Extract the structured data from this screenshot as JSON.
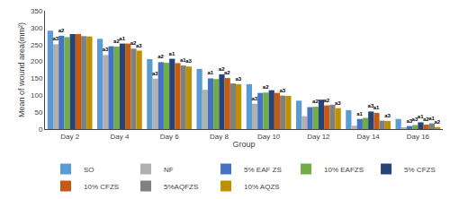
{
  "chart_data": {
    "type": "bar",
    "xlabel": "Group",
    "ylabel": "Mean of wound area(mm²)",
    "categories": [
      "Day 2",
      "Day 4",
      "Day 6",
      "Day 8",
      "Day 10",
      "Day 12",
      "Day 14",
      "Day 16"
    ],
    "series": [
      {
        "name": "SO",
        "color": "#5B9BD5",
        "values": [
          291,
          267,
          207,
          178,
          133,
          84,
          56,
          30
        ]
      },
      {
        "name": "NF",
        "color": "#B0B0B0",
        "values": [
          251,
          219,
          149,
          116,
          75,
          38,
          10,
          4
        ]
      },
      {
        "name": "5% EAF ZS",
        "color": "#4472C4",
        "values": [
          276,
          245,
          198,
          150,
          107,
          65,
          30,
          9
        ]
      },
      {
        "name": "10% EAFZS",
        "color": "#70AD47",
        "values": [
          272,
          244,
          196,
          148,
          108,
          66,
          33,
          12
        ]
      },
      {
        "name": "5% CFZS",
        "color": "#264478",
        "values": [
          281,
          253,
          208,
          162,
          115,
          87,
          52,
          20
        ]
      },
      {
        "name": "10% CFZS",
        "color": "#C55A11",
        "values": [
          281,
          253,
          195,
          151,
          107,
          70,
          48,
          13
        ]
      },
      {
        "name": "5%AQFZS",
        "color": "#808080",
        "values": [
          275,
          238,
          188,
          135,
          99,
          72,
          25,
          17
        ]
      },
      {
        "name": "10% AQZS",
        "color": "#BF9000",
        "values": [
          274,
          232,
          185,
          133,
          98,
          62,
          24,
          6
        ]
      }
    ],
    "annotations": [
      {
        "category": "Day 2",
        "series": "NF",
        "text": "a3"
      },
      {
        "category": "Day 2",
        "series": "5% EAF ZS",
        "text": "a2"
      },
      {
        "category": "Day 4",
        "series": "NF",
        "text": "a3"
      },
      {
        "category": "Day 4",
        "series": "10% EAFZS",
        "text": "a2"
      },
      {
        "category": "Day 4",
        "series": "5% CFZS",
        "text": "a1"
      },
      {
        "category": "Day 4",
        "series": "5%AQFZS",
        "text": "a2"
      },
      {
        "category": "Day 4",
        "series": "10% AQZS",
        "text": "a3"
      },
      {
        "category": "Day 6",
        "series": "NF",
        "text": "a3"
      },
      {
        "category": "Day 6",
        "series": "5% EAF ZS",
        "text": "a2"
      },
      {
        "category": "Day 6",
        "series": "5% CFZS",
        "text": "a1"
      },
      {
        "category": "Day 6",
        "series": "5%AQFZS",
        "text": "a1"
      },
      {
        "category": "Day 6",
        "series": "10% AQZS",
        "text": "a3"
      },
      {
        "category": "Day 8",
        "series": "5% EAF ZS",
        "text": "a1"
      },
      {
        "category": "Day 8",
        "series": "5% CFZS",
        "text": "a2"
      },
      {
        "category": "Day 8",
        "series": "10% CFZS",
        "text": "a2"
      },
      {
        "category": "Day 8",
        "series": "10% AQZS",
        "text": "a3"
      },
      {
        "category": "Day 10",
        "series": "NF",
        "text": "a3"
      },
      {
        "category": "Day 10",
        "series": "10% EAFZS",
        "text": "a2"
      },
      {
        "category": "Day 10",
        "series": "5%AQFZS",
        "text": "a3"
      },
      {
        "category": "Day 12",
        "series": "10% EAFZS",
        "text": "a2"
      },
      {
        "category": "Day 12",
        "series": "10% CFZS",
        "text": "a2"
      },
      {
        "category": "Day 12",
        "series": "10% AQZS",
        "text": "a3"
      },
      {
        "category": "Day 14",
        "series": "5% EAF ZS",
        "text": "a1"
      },
      {
        "category": "Day 14",
        "series": "5% CFZS",
        "text": "a3"
      },
      {
        "category": "Day 14",
        "series": "10% CFZS",
        "text": "a1"
      },
      {
        "category": "Day 14",
        "series": "10% AQZS",
        "text": "a3"
      },
      {
        "category": "Day 16",
        "series": "5% EAF ZS",
        "text": "a3"
      },
      {
        "category": "Day 16",
        "series": "10% EAFZS",
        "text": "a3"
      },
      {
        "category": "Day 16",
        "series": "5% CFZS",
        "text": "a1"
      },
      {
        "category": "Day 16",
        "series": "10% CFZS",
        "text": "a2"
      },
      {
        "category": "Day 16",
        "series": "5%AQFZS",
        "text": "a1"
      },
      {
        "category": "Day 16",
        "series": "10% AQZS",
        "text": "a2"
      }
    ],
    "ylim": [
      0,
      350
    ],
    "yticks": [
      0,
      50,
      100,
      150,
      200,
      250,
      300,
      350
    ],
    "grid": false,
    "legend": "bottom"
  }
}
